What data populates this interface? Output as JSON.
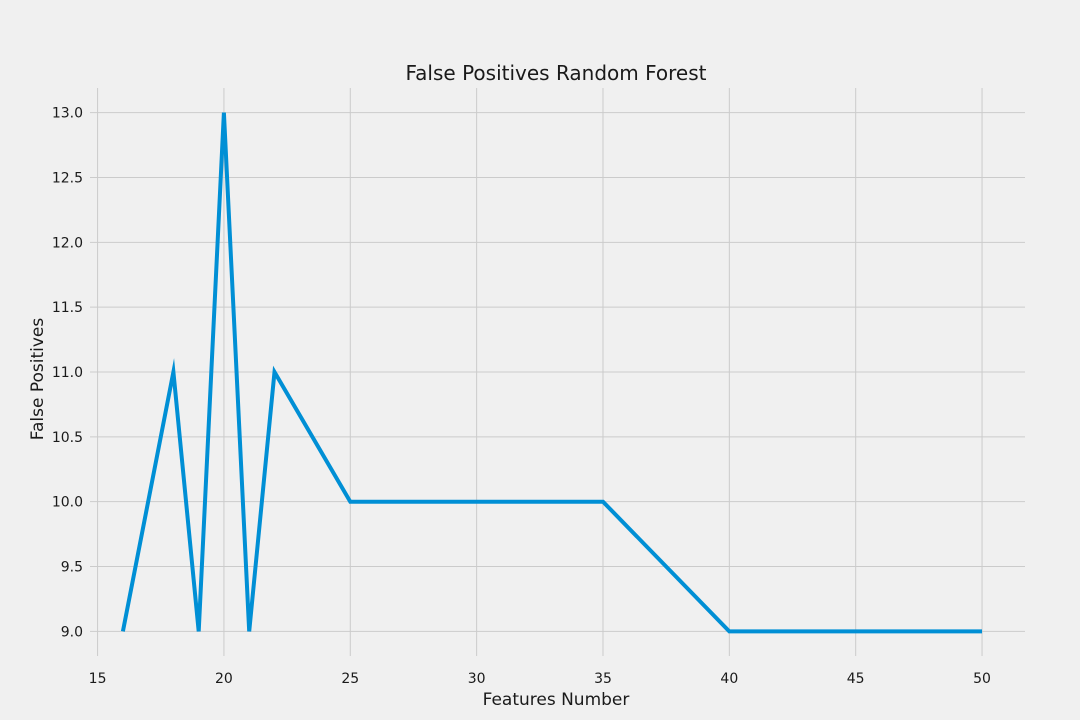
{
  "chart_data": {
    "type": "line",
    "title": "False Positives Random Forest",
    "xlabel": "Features Number",
    "ylabel": "False Positives",
    "xlim": [
      14.7,
      51.7
    ],
    "ylim": [
      8.81,
      13.19
    ],
    "x_ticks": [
      15,
      20,
      25,
      30,
      35,
      40,
      45,
      50
    ],
    "x_tick_labels": [
      "15",
      "20",
      "25",
      "30",
      "35",
      "40",
      "45",
      "50"
    ],
    "y_ticks": [
      9.0,
      9.5,
      10.0,
      10.5,
      11.0,
      11.5,
      12.0,
      12.5,
      13.0
    ],
    "y_tick_labels": [
      "9.0",
      "9.5",
      "10.0",
      "10.5",
      "11.0",
      "11.5",
      "12.0",
      "12.5",
      "13.0"
    ],
    "grid": true,
    "series": [
      {
        "color": "#008fd5",
        "x": [
          16,
          18,
          19,
          20,
          21,
          22,
          25,
          35,
          40,
          50
        ],
        "y": [
          9,
          11,
          9,
          13,
          9,
          11,
          10,
          10,
          9,
          9
        ]
      }
    ]
  }
}
